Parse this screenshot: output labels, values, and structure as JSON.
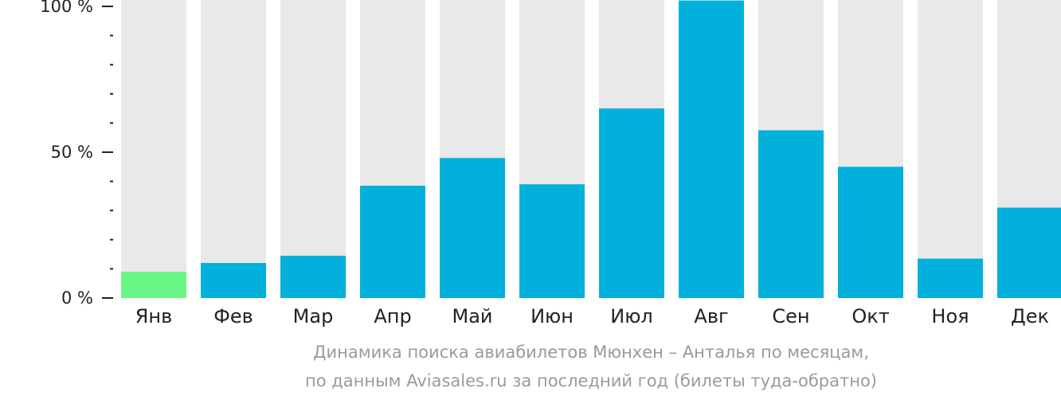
{
  "chart_data": {
    "type": "bar",
    "categories": [
      "Янв",
      "Фев",
      "Мар",
      "Апр",
      "Май",
      "Июн",
      "Июл",
      "Авг",
      "Сен",
      "Окт",
      "Ноя",
      "Дек"
    ],
    "values": [
      9,
      12,
      14.5,
      38.5,
      48,
      39,
      65,
      102,
      57.5,
      45,
      13.5,
      31
    ],
    "ylim": [
      0,
      100
    ],
    "yticks": [
      {
        "value": 0,
        "label": "0 %"
      },
      {
        "value": 50,
        "label": "50 %"
      },
      {
        "value": 100,
        "label": "100 %"
      }
    ],
    "minor_tick_step": 10,
    "title": "",
    "xlabel": "",
    "ylabel": "",
    "grid": false,
    "highlight_index": 0,
    "colors": {
      "bar": "#02b0dc",
      "highlight": "#6af587",
      "track": "#e9e9e9",
      "axis": "#222222"
    }
  },
  "caption": {
    "line1": "Динамика поиска авиабилетов Мюнхен – Анталья по месяцам,",
    "line2": "по данным Aviasales.ru за последний год (билеты туда-обратно)"
  }
}
